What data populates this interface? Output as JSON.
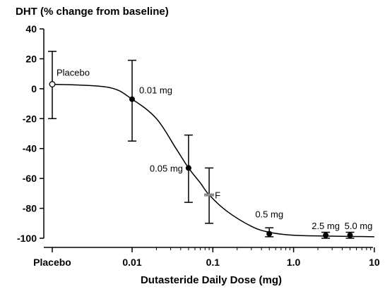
{
  "chart_data": {
    "type": "line",
    "title": "DHT (% change from baseline)",
    "xlabel": "Dutasteride Daily Dose (mg)",
    "x_scale": "log",
    "x_tick_labels": [
      "Placebo",
      "0.01",
      "0.1",
      "1.0",
      "10"
    ],
    "y_ticks": [
      "40",
      "20",
      "0",
      "-20",
      "-40",
      "-60",
      "-80",
      "-100"
    ],
    "ylim": [
      -100,
      40
    ],
    "points": [
      {
        "label": "Placebo",
        "dose": "placebo",
        "y": 3,
        "err_low": -20,
        "err_high": 25,
        "marker": "open"
      },
      {
        "label": "0.01 mg",
        "dose": 0.01,
        "y": -7,
        "err_low": -35,
        "err_high": 19,
        "marker": "filled"
      },
      {
        "label": "0.05 mg",
        "dose": 0.05,
        "y": -53,
        "err_low": -76,
        "err_high": -31,
        "marker": "filled"
      },
      {
        "label": "F",
        "dose": 0.09,
        "y": -71,
        "err_low": -90,
        "err_high": -53,
        "marker": "bar"
      },
      {
        "label": "0.5 mg",
        "dose": 0.5,
        "y": -97,
        "err_low": -99,
        "err_high": -93,
        "marker": "filled"
      },
      {
        "label": "2.5 mg",
        "dose": 2.5,
        "y": -98,
        "err_low": -100,
        "err_high": -96,
        "marker": "filled"
      },
      {
        "label": "5.0 mg",
        "dose": 5.0,
        "y": -98,
        "err_low": -100,
        "err_high": -96,
        "marker": "filled"
      }
    ],
    "curve": [
      [
        "placebo",
        3
      ],
      [
        0.005,
        1
      ],
      [
        0.01,
        -7
      ],
      [
        0.02,
        -20
      ],
      [
        0.035,
        -40
      ],
      [
        0.05,
        -53
      ],
      [
        0.07,
        -63
      ],
      [
        0.09,
        -71
      ],
      [
        0.15,
        -82
      ],
      [
        0.3,
        -92
      ],
      [
        0.5,
        -96
      ],
      [
        1.0,
        -98
      ],
      [
        2.5,
        -98.5
      ],
      [
        10,
        -99
      ]
    ]
  }
}
